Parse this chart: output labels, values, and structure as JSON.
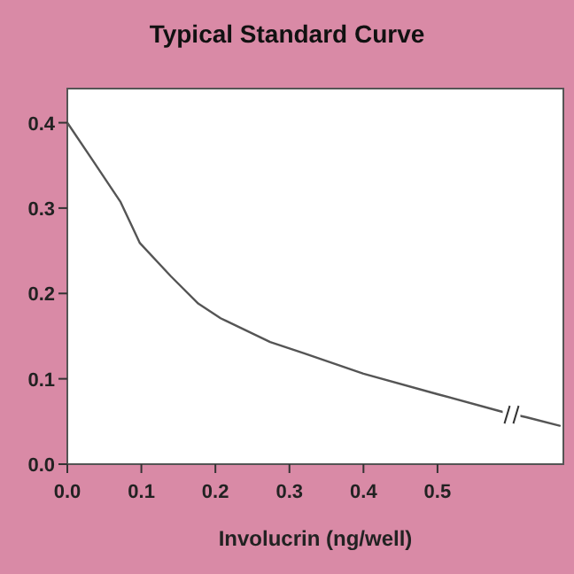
{
  "chart_data": {
    "type": "line",
    "title": "Typical Standard Curve",
    "xlabel": "Involucrin (ng/well)",
    "x": [
      0,
      0.035,
      0.072,
      0.098,
      0.14,
      0.177,
      0.207,
      0.274,
      0.319,
      0.4,
      0.5,
      0.589,
      0.62,
      0.665
    ],
    "series": [
      {
        "color": "#555555",
        "values": [
          0.4,
          0.355,
          0.307,
          0.259,
          0.22,
          0.188,
          0.171,
          0.143,
          0.13,
          0.106,
          0.082,
          0.061,
          0.055,
          0.045
        ]
      }
    ],
    "xlim": [
      0,
      0.67
    ],
    "ylim": [
      0,
      0.44
    ],
    "xticks": [
      {
        "value": 0,
        "label": "0.0"
      },
      0.1,
      0.2,
      0.3,
      0.4,
      0.5
    ],
    "yticks": [
      {
        "value": 0,
        "label": "0.0"
      },
      0.1,
      0.2,
      0.3,
      0.4
    ],
    "grid": false,
    "marker": "none",
    "line_style": "solid"
  }
}
